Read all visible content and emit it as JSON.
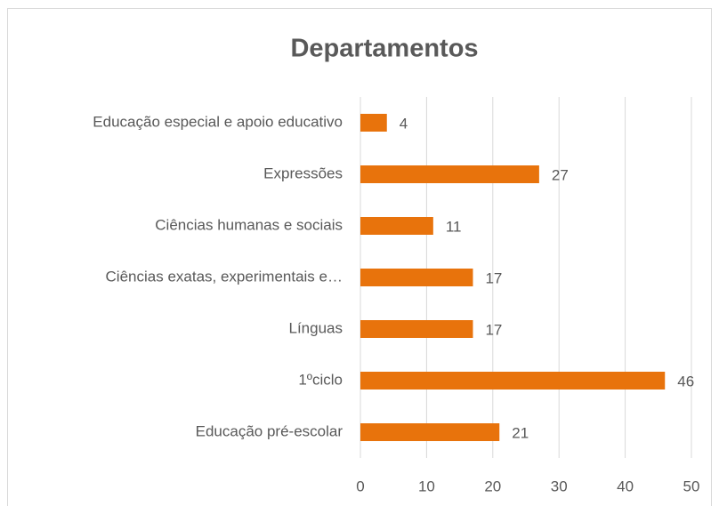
{
  "chart_data": {
    "type": "bar",
    "orientation": "horizontal",
    "title": "Departamentos",
    "categories": [
      "Educação especial e apoio educativo",
      "Expressões",
      "Ciências humanas e sociais",
      "Ciências exatas, experimentais e…",
      "Línguas",
      "1ºciclo",
      "Educação pré-escolar"
    ],
    "values": [
      4,
      27,
      11,
      17,
      17,
      46,
      21
    ],
    "color": "#e8730c",
    "xlim": [
      0,
      50
    ],
    "xticks": [
      0,
      10,
      20,
      30,
      40,
      50
    ],
    "grid": true
  }
}
